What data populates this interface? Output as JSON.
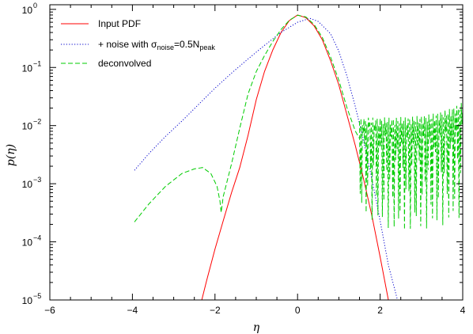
{
  "chart_data": {
    "type": "line",
    "title": "",
    "xlabel": "η",
    "ylabel": "p(η)",
    "xlim": [
      -6,
      4
    ],
    "ylim": [
      1e-05,
      1.2
    ],
    "yscale": "log",
    "grid": false,
    "legend_position": "top-left",
    "x_ticks": [
      -6,
      -4,
      -2,
      0,
      2,
      4
    ],
    "x_tick_labels": [
      "−6",
      "−4",
      "−2",
      "0",
      "2",
      "4"
    ],
    "y_ticks": [
      {
        "value": 1e-05,
        "base": "10",
        "exp": "−5"
      },
      {
        "value": 0.0001,
        "base": "10",
        "exp": "−4"
      },
      {
        "value": 0.001,
        "base": "10",
        "exp": "−3"
      },
      {
        "value": 0.01,
        "base": "10",
        "exp": "−2"
      },
      {
        "value": 0.1,
        "base": "10",
        "exp": "−1"
      },
      {
        "value": 1,
        "base": "10",
        "exp": "0"
      }
    ],
    "series": [
      {
        "name": "Input PDF",
        "color": "#ff0000",
        "style": "solid",
        "x": [
          -2.32,
          -2.2,
          -2.0,
          -1.8,
          -1.6,
          -1.4,
          -1.2,
          -1.0,
          -0.8,
          -0.6,
          -0.4,
          -0.2,
          0.0,
          0.2,
          0.4,
          0.6,
          0.8,
          1.0,
          1.2,
          1.4,
          1.6,
          1.8,
          2.0,
          2.2,
          2.42
        ],
        "y": [
          1e-05,
          2.2e-05,
          7.5e-05,
          0.00023,
          0.0007,
          0.0019,
          0.0068,
          0.028,
          0.085,
          0.2,
          0.4,
          0.64,
          0.8,
          0.72,
          0.52,
          0.3,
          0.13,
          0.05,
          0.015,
          0.0045,
          0.0012,
          0.00028,
          5.5e-05,
          1e-05,
          1e-05
        ]
      },
      {
        "name": "+ noise with σnoise=0.5Npeak",
        "label_parts": {
          "prefix": "+ noise with σ",
          "sub1": "noise",
          "mid": "=0.5N",
          "sub2": "peak"
        },
        "color": "#0000cc",
        "style": "dotted",
        "x": [
          -3.95,
          -3.6,
          -3.2,
          -2.8,
          -2.4,
          -2.0,
          -1.6,
          -1.2,
          -0.8,
          -0.4,
          0.0,
          0.3,
          0.5,
          0.8,
          1.0,
          1.2,
          1.4,
          1.6,
          1.8,
          2.0,
          2.2,
          2.42
        ],
        "y": [
          0.0017,
          0.0033,
          0.0065,
          0.012,
          0.023,
          0.044,
          0.08,
          0.14,
          0.24,
          0.4,
          0.6,
          0.7,
          0.62,
          0.38,
          0.19,
          0.07,
          0.021,
          0.0055,
          0.0012,
          0.00023,
          4e-05,
          1e-05
        ]
      },
      {
        "name": "deconvolved",
        "color": "#00cc00",
        "style": "dashed",
        "x": [
          -3.95,
          -3.6,
          -3.2,
          -2.8,
          -2.5,
          -2.3,
          -2.1,
          -1.95,
          -1.88,
          -1.85,
          -1.8,
          -1.6,
          -1.4,
          -1.2,
          -1.0,
          -0.8,
          -0.6,
          -0.4,
          -0.2,
          0.0,
          0.2,
          0.4,
          0.6,
          0.8,
          1.0,
          1.2,
          1.4,
          1.5
        ],
        "y": [
          0.00022,
          0.00045,
          0.0009,
          0.0015,
          0.0018,
          0.0019,
          0.0015,
          0.0009,
          0.0005,
          0.00032,
          0.0006,
          0.0022,
          0.009,
          0.035,
          0.085,
          0.16,
          0.28,
          0.45,
          0.65,
          0.79,
          0.74,
          0.55,
          0.33,
          0.15,
          0.06,
          0.02,
          0.008,
          0.006
        ],
        "noise_region": {
          "x_start": 1.5,
          "x_end": 4.0,
          "upper": 0.012,
          "upper_end": 0.022,
          "lower_min": 6e-05
        }
      }
    ]
  }
}
